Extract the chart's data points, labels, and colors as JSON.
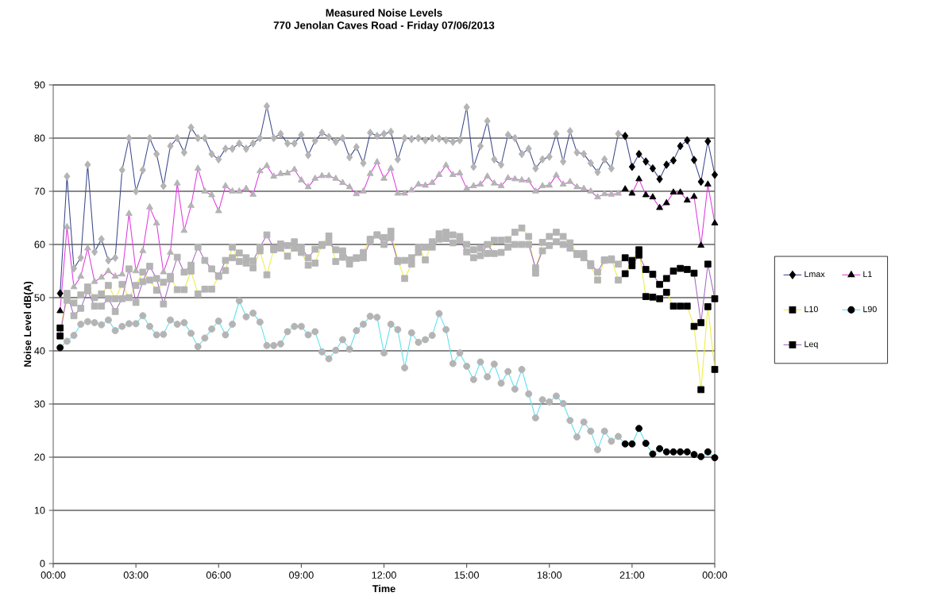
{
  "chart_data": {
    "type": "line",
    "title": "Measured Noise Levels",
    "subtitle": "770 Jenolan Caves Road - Friday 07/06/2013",
    "xlabel": "Time",
    "ylabel": "Noise Level dB(A)",
    "x": [
      0.25,
      0.5,
      0.75,
      1,
      1.25,
      1.5,
      1.75,
      2,
      2.25,
      2.5,
      2.75,
      3,
      3.25,
      3.5,
      3.75,
      4,
      4.25,
      4.5,
      4.75,
      5,
      5.25,
      5.5,
      5.75,
      6,
      6.25,
      6.5,
      6.75,
      7,
      7.25,
      7.5,
      7.75,
      8,
      8.25,
      8.5,
      8.75,
      9,
      9.25,
      9.5,
      9.75,
      10,
      10.25,
      10.5,
      10.75,
      11,
      11.25,
      11.5,
      11.75,
      12,
      12.25,
      12.5,
      12.75,
      13,
      13.25,
      13.5,
      13.75,
      14,
      14.25,
      14.5,
      14.75,
      15,
      15.25,
      15.5,
      15.75,
      16,
      16.25,
      16.5,
      16.75,
      17,
      17.25,
      17.5,
      17.75,
      18,
      18.25,
      18.5,
      18.75,
      19,
      19.25,
      19.5,
      19.75,
      20,
      20.25,
      20.5,
      20.75,
      21,
      21.25,
      21.5,
      21.75,
      22,
      22.25,
      22.5,
      22.75,
      23,
      23.25,
      23.5,
      23.75,
      24
    ],
    "xlim": [
      0,
      24
    ],
    "ylim": [
      0,
      90
    ],
    "xticks": [
      {
        "value": 0,
        "label": "00:00"
      },
      {
        "value": 3,
        "label": "03:00"
      },
      {
        "value": 6,
        "label": "06:00"
      },
      {
        "value": 9,
        "label": "09:00"
      },
      {
        "value": 12,
        "label": "12:00"
      },
      {
        "value": 15,
        "label": "15:00"
      },
      {
        "value": 18,
        "label": "18:00"
      },
      {
        "value": 21,
        "label": "21:00"
      },
      {
        "value": 24,
        "label": "00:00"
      }
    ],
    "yticks": [
      0,
      10,
      20,
      30,
      40,
      50,
      60,
      70,
      80,
      90
    ],
    "grid": "y",
    "legend": "right",
    "series": [
      {
        "name": "Lmax",
        "color": "#3c4a8c",
        "marker": "diamond",
        "values": [
          50.8,
          72.8,
          55.5,
          57.5,
          75,
          58.6,
          61,
          57,
          57.5,
          74,
          80,
          70,
          74,
          80,
          77,
          71,
          78.5,
          80,
          77.3,
          82,
          80,
          80,
          77,
          76,
          78,
          78,
          79,
          78,
          79,
          80,
          86,
          80,
          80.8,
          79,
          79,
          80.6,
          76.8,
          79.5,
          81,
          80.2,
          79.3,
          80,
          76.4,
          78.3,
          75.3,
          81,
          80.4,
          80.8,
          81.2,
          76,
          80,
          79.8,
          80,
          79.6,
          80,
          79.9,
          79.6,
          79.3,
          79.6,
          85.8,
          74.6,
          78.5,
          83.2,
          76,
          75,
          80.6,
          80,
          77,
          78,
          74.3,
          76,
          76.5,
          80.8,
          75.6,
          81.3,
          77.3,
          77,
          75.3,
          73.6,
          76,
          74.3,
          80.8,
          80.4,
          74.6,
          77,
          75.6,
          74.3,
          72.3,
          75,
          75.8,
          78.5,
          79.6,
          75.9,
          71.8,
          79.4,
          73.1
        ],
        "colors": [
          "#000000",
          "#b4b4b4",
          "#b4b4b4",
          "#b4b4b4",
          "#b4b4b4",
          "#b4b4b4",
          "#b4b4b4",
          "#b4b4b4",
          "#b4b4b4",
          "#b4b4b4",
          "#b4b4b4",
          "#b4b4b4",
          "#b4b4b4",
          "#b4b4b4",
          "#b4b4b4",
          "#b4b4b4",
          "#b4b4b4",
          "#b4b4b4",
          "#b4b4b4",
          "#b4b4b4",
          "#b4b4b4",
          "#b4b4b4",
          "#b4b4b4",
          "#b4b4b4",
          "#b4b4b4",
          "#b4b4b4",
          "#b4b4b4",
          "#b4b4b4",
          "#b4b4b4",
          "#b4b4b4",
          "#b4b4b4",
          "#b4b4b4",
          "#b4b4b4",
          "#b4b4b4",
          "#b4b4b4",
          "#b4b4b4",
          "#b4b4b4",
          "#b4b4b4",
          "#b4b4b4",
          "#b4b4b4",
          "#b4b4b4",
          "#b4b4b4",
          "#b4b4b4",
          "#b4b4b4",
          "#b4b4b4",
          "#b4b4b4",
          "#b4b4b4",
          "#b4b4b4",
          "#b4b4b4",
          "#b4b4b4",
          "#b4b4b4",
          "#b4b4b4",
          "#b4b4b4",
          "#b4b4b4",
          "#b4b4b4",
          "#b4b4b4",
          "#b4b4b4",
          "#b4b4b4",
          "#b4b4b4",
          "#b4b4b4",
          "#b4b4b4",
          "#b4b4b4",
          "#b4b4b4",
          "#b4b4b4",
          "#b4b4b4",
          "#b4b4b4",
          "#b4b4b4",
          "#b4b4b4",
          "#b4b4b4",
          "#b4b4b4",
          "#b4b4b4",
          "#b4b4b4",
          "#b4b4b4",
          "#b4b4b4",
          "#b4b4b4",
          "#b4b4b4",
          "#b4b4b4",
          "#b4b4b4",
          "#b4b4b4",
          "#b4b4b4",
          "#b4b4b4",
          "#b4b4b4",
          "#000000",
          "#000000",
          "#000000",
          "#000000",
          "#000000",
          "#000000",
          "#000000",
          "#000000",
          "#000000",
          "#000000",
          "#000000",
          "#000000",
          "#000000",
          "#000000"
        ]
      },
      {
        "name": "L1",
        "color": "#e03ce0",
        "marker": "triangle",
        "values": [
          47.5,
          63.3,
          52,
          54,
          59.3,
          53,
          53.8,
          55,
          54,
          54.4,
          65.8,
          55,
          58.8,
          67,
          64,
          54.8,
          58.5,
          71.5,
          62.6,
          67.3,
          74.3,
          70,
          69.3,
          66.3,
          71,
          70,
          70,
          70.5,
          69.4,
          73.8,
          74.8,
          72.8,
          73.3,
          73.4,
          74.1,
          72.1,
          70.8,
          72.4,
          72.9,
          72.9,
          72.4,
          71.6,
          70.8,
          69.5,
          70,
          73.3,
          75.5,
          72.4,
          74.3,
          69.6,
          69.6,
          70.2,
          71.3,
          71.1,
          71.6,
          73.1,
          74.9,
          73.1,
          73.4,
          70.5,
          71,
          71.3,
          72.8,
          71.5,
          71,
          72.5,
          72.3,
          72.1,
          72,
          70,
          71,
          71.1,
          73,
          71.3,
          71.8,
          70.8,
          70.5,
          70,
          68.9,
          69.5,
          69.4,
          69.6,
          70.4,
          69.6,
          72.3,
          69.3,
          68.9,
          66.9,
          67.8,
          69.8,
          69.8,
          68.3,
          69,
          59.8,
          71.3,
          64
        ],
        "colors": [
          "#000000",
          "#b4b4b4",
          "#b4b4b4",
          "#b4b4b4",
          "#b4b4b4",
          "#b4b4b4",
          "#b4b4b4",
          "#b4b4b4",
          "#b4b4b4",
          "#b4b4b4",
          "#b4b4b4",
          "#b4b4b4",
          "#b4b4b4",
          "#b4b4b4",
          "#b4b4b4",
          "#b4b4b4",
          "#b4b4b4",
          "#b4b4b4",
          "#b4b4b4",
          "#b4b4b4",
          "#b4b4b4",
          "#b4b4b4",
          "#b4b4b4",
          "#b4b4b4",
          "#b4b4b4",
          "#b4b4b4",
          "#b4b4b4",
          "#b4b4b4",
          "#b4b4b4",
          "#b4b4b4",
          "#b4b4b4",
          "#b4b4b4",
          "#b4b4b4",
          "#b4b4b4",
          "#b4b4b4",
          "#b4b4b4",
          "#b4b4b4",
          "#b4b4b4",
          "#b4b4b4",
          "#b4b4b4",
          "#b4b4b4",
          "#b4b4b4",
          "#b4b4b4",
          "#b4b4b4",
          "#b4b4b4",
          "#b4b4b4",
          "#b4b4b4",
          "#b4b4b4",
          "#b4b4b4",
          "#b4b4b4",
          "#b4b4b4",
          "#b4b4b4",
          "#b4b4b4",
          "#b4b4b4",
          "#b4b4b4",
          "#b4b4b4",
          "#b4b4b4",
          "#b4b4b4",
          "#b4b4b4",
          "#b4b4b4",
          "#b4b4b4",
          "#b4b4b4",
          "#b4b4b4",
          "#b4b4b4",
          "#b4b4b4",
          "#b4b4b4",
          "#b4b4b4",
          "#b4b4b4",
          "#b4b4b4",
          "#b4b4b4",
          "#b4b4b4",
          "#b4b4b4",
          "#b4b4b4",
          "#b4b4b4",
          "#b4b4b4",
          "#b4b4b4",
          "#b4b4b4",
          "#b4b4b4",
          "#b4b4b4",
          "#b4b4b4",
          "#b4b4b4",
          "#b4b4b4",
          "#000000",
          "#000000",
          "#000000",
          "#000000",
          "#000000",
          "#000000",
          "#000000",
          "#000000",
          "#000000",
          "#000000",
          "#000000",
          "#000000",
          "#000000",
          "#000000"
        ]
      },
      {
        "name": "L10",
        "color": "#eeee44",
        "marker": "square",
        "values": [
          44.3,
          49.5,
          49,
          50.5,
          52,
          50,
          50.7,
          52.3,
          49.8,
          52.5,
          50,
          52.3,
          54.8,
          53.3,
          51.4,
          52.9,
          54,
          51.5,
          51.5,
          55,
          50.7,
          51.6,
          51.6,
          54,
          55.1,
          59.5,
          56.8,
          56.5,
          55.6,
          58.8,
          54.3,
          59,
          59.3,
          57.8,
          59.3,
          58.5,
          56.1,
          56.5,
          60,
          61.6,
          56.8,
          57.6,
          56.3,
          57.5,
          58.5,
          61,
          61.8,
          61.3,
          62.5,
          57,
          53.6,
          56.3,
          59.5,
          57.1,
          60.5,
          62,
          62.3,
          61.8,
          61.5,
          60,
          59,
          59.3,
          58.3,
          60.8,
          60.8,
          60.9,
          62.3,
          63.1,
          61.5,
          54.6,
          60.4,
          61.5,
          62.3,
          61.5,
          60.3,
          58.3,
          58.3,
          56,
          53.3,
          57,
          57.3,
          53.3,
          54.5,
          57,
          59,
          50.2,
          50.1,
          49.8,
          51,
          48.4,
          48.4,
          48.4,
          44.6,
          32.7,
          48.3,
          36.5
        ],
        "colors": [
          "#000000",
          "#b4b4b4",
          "#b4b4b4",
          "#b4b4b4",
          "#b4b4b4",
          "#b4b4b4",
          "#b4b4b4",
          "#b4b4b4",
          "#b4b4b4",
          "#b4b4b4",
          "#b4b4b4",
          "#b4b4b4",
          "#b4b4b4",
          "#b4b4b4",
          "#b4b4b4",
          "#b4b4b4",
          "#b4b4b4",
          "#b4b4b4",
          "#b4b4b4",
          "#b4b4b4",
          "#b4b4b4",
          "#b4b4b4",
          "#b4b4b4",
          "#b4b4b4",
          "#b4b4b4",
          "#b4b4b4",
          "#b4b4b4",
          "#b4b4b4",
          "#b4b4b4",
          "#b4b4b4",
          "#b4b4b4",
          "#b4b4b4",
          "#b4b4b4",
          "#b4b4b4",
          "#b4b4b4",
          "#b4b4b4",
          "#b4b4b4",
          "#b4b4b4",
          "#b4b4b4",
          "#b4b4b4",
          "#b4b4b4",
          "#b4b4b4",
          "#b4b4b4",
          "#b4b4b4",
          "#b4b4b4",
          "#b4b4b4",
          "#b4b4b4",
          "#b4b4b4",
          "#b4b4b4",
          "#b4b4b4",
          "#b4b4b4",
          "#b4b4b4",
          "#b4b4b4",
          "#b4b4b4",
          "#b4b4b4",
          "#b4b4b4",
          "#b4b4b4",
          "#b4b4b4",
          "#b4b4b4",
          "#b4b4b4",
          "#b4b4b4",
          "#b4b4b4",
          "#b4b4b4",
          "#b4b4b4",
          "#b4b4b4",
          "#b4b4b4",
          "#b4b4b4",
          "#b4b4b4",
          "#b4b4b4",
          "#b4b4b4",
          "#b4b4b4",
          "#b4b4b4",
          "#b4b4b4",
          "#b4b4b4",
          "#b4b4b4",
          "#b4b4b4",
          "#b4b4b4",
          "#b4b4b4",
          "#b4b4b4",
          "#b4b4b4",
          "#b4b4b4",
          "#b4b4b4",
          "#000000",
          "#000000",
          "#000000",
          "#000000",
          "#000000",
          "#000000",
          "#000000",
          "#000000",
          "#000000",
          "#000000",
          "#000000",
          "#000000",
          "#000000",
          "#000000"
        ]
      },
      {
        "name": "L90",
        "color": "#5ae0f0",
        "marker": "circle",
        "values": [
          40.6,
          41.8,
          42.9,
          45,
          45.5,
          45.3,
          44.9,
          45.8,
          43.8,
          44.6,
          45.1,
          45.1,
          46.6,
          44.6,
          43,
          43.1,
          45.8,
          45,
          45.3,
          43.3,
          40.8,
          42.4,
          44.1,
          45.6,
          43,
          45,
          49.4,
          46.4,
          47.1,
          45.4,
          41,
          41,
          41.3,
          43.6,
          44.6,
          44.6,
          43,
          43.6,
          39.8,
          38.5,
          40.1,
          42.1,
          40.3,
          43.8,
          45,
          46.5,
          46.3,
          39.6,
          45,
          44,
          36.8,
          43.4,
          41.6,
          42.1,
          42.9,
          47,
          44,
          37.6,
          39.6,
          37.1,
          34.6,
          37.9,
          35.1,
          37.5,
          33.9,
          36.1,
          32.8,
          36.5,
          31.9,
          27.4,
          30.8,
          30.4,
          31.5,
          30.1,
          26.9,
          23.8,
          26.6,
          24.9,
          21.4,
          24.9,
          23,
          23.9,
          22.5,
          22.5,
          25.4,
          22.6,
          20.6,
          21.6,
          21,
          21,
          21,
          21,
          20.5,
          20.1,
          21,
          19.9
        ],
        "colors": [
          "#000000",
          "#b4b4b4",
          "#b4b4b4",
          "#b4b4b4",
          "#b4b4b4",
          "#b4b4b4",
          "#b4b4b4",
          "#b4b4b4",
          "#b4b4b4",
          "#b4b4b4",
          "#b4b4b4",
          "#b4b4b4",
          "#b4b4b4",
          "#b4b4b4",
          "#b4b4b4",
          "#b4b4b4",
          "#b4b4b4",
          "#b4b4b4",
          "#b4b4b4",
          "#b4b4b4",
          "#b4b4b4",
          "#b4b4b4",
          "#b4b4b4",
          "#b4b4b4",
          "#b4b4b4",
          "#b4b4b4",
          "#b4b4b4",
          "#b4b4b4",
          "#b4b4b4",
          "#b4b4b4",
          "#b4b4b4",
          "#b4b4b4",
          "#b4b4b4",
          "#b4b4b4",
          "#b4b4b4",
          "#b4b4b4",
          "#b4b4b4",
          "#b4b4b4",
          "#b4b4b4",
          "#b4b4b4",
          "#b4b4b4",
          "#b4b4b4",
          "#b4b4b4",
          "#b4b4b4",
          "#b4b4b4",
          "#b4b4b4",
          "#b4b4b4",
          "#b4b4b4",
          "#b4b4b4",
          "#b4b4b4",
          "#b4b4b4",
          "#b4b4b4",
          "#b4b4b4",
          "#b4b4b4",
          "#b4b4b4",
          "#b4b4b4",
          "#b4b4b4",
          "#b4b4b4",
          "#b4b4b4",
          "#b4b4b4",
          "#b4b4b4",
          "#b4b4b4",
          "#b4b4b4",
          "#b4b4b4",
          "#b4b4b4",
          "#b4b4b4",
          "#b4b4b4",
          "#b4b4b4",
          "#b4b4b4",
          "#b4b4b4",
          "#b4b4b4",
          "#b4b4b4",
          "#b4b4b4",
          "#b4b4b4",
          "#b4b4b4",
          "#b4b4b4",
          "#b4b4b4",
          "#b4b4b4",
          "#b4b4b4",
          "#b4b4b4",
          "#b4b4b4",
          "#b4b4b4",
          "#000000",
          "#000000",
          "#000000",
          "#000000",
          "#000000",
          "#000000",
          "#000000",
          "#000000",
          "#000000",
          "#000000",
          "#000000",
          "#000000",
          "#000000",
          "#000000"
        ]
      },
      {
        "name": "Leq",
        "color": "#a868c0",
        "marker": "square",
        "values": [
          42.8,
          50.8,
          46.6,
          48,
          51.3,
          48.4,
          48.4,
          49.8,
          47.4,
          49.8,
          55.4,
          49.1,
          53,
          55.9,
          53.6,
          48.8,
          53.5,
          57.6,
          54.8,
          56.1,
          59.5,
          57,
          55.4,
          54.1,
          57,
          57.5,
          58.4,
          57.5,
          56.9,
          59.5,
          61.8,
          59.3,
          60.1,
          59.8,
          60.5,
          59.5,
          57.5,
          59.1,
          59.8,
          60.4,
          59,
          58.8,
          57.1,
          57.4,
          57.5,
          60.6,
          61.8,
          60,
          61.3,
          56.8,
          57,
          57.5,
          58.5,
          59.5,
          59.5,
          61,
          61.1,
          60.3,
          60.8,
          58.6,
          57.5,
          57.9,
          60,
          58.3,
          58.5,
          59.5,
          60,
          60,
          60,
          55.6,
          58.8,
          59.8,
          60.5,
          60,
          59.3,
          58.1,
          57.5,
          56.4,
          54.8,
          57.1,
          57.1,
          56.3,
          57.5,
          56,
          58,
          55.3,
          54.4,
          52.5,
          53.6,
          55,
          55.5,
          55.3,
          54.6,
          45.3,
          56.3,
          49.8
        ],
        "colors": [
          "#000000",
          "#b4b4b4",
          "#b4b4b4",
          "#b4b4b4",
          "#b4b4b4",
          "#b4b4b4",
          "#b4b4b4",
          "#b4b4b4",
          "#b4b4b4",
          "#b4b4b4",
          "#b4b4b4",
          "#b4b4b4",
          "#b4b4b4",
          "#b4b4b4",
          "#b4b4b4",
          "#b4b4b4",
          "#b4b4b4",
          "#b4b4b4",
          "#b4b4b4",
          "#b4b4b4",
          "#b4b4b4",
          "#b4b4b4",
          "#b4b4b4",
          "#b4b4b4",
          "#b4b4b4",
          "#b4b4b4",
          "#b4b4b4",
          "#b4b4b4",
          "#b4b4b4",
          "#b4b4b4",
          "#b4b4b4",
          "#b4b4b4",
          "#b4b4b4",
          "#b4b4b4",
          "#b4b4b4",
          "#b4b4b4",
          "#b4b4b4",
          "#b4b4b4",
          "#b4b4b4",
          "#b4b4b4",
          "#b4b4b4",
          "#b4b4b4",
          "#b4b4b4",
          "#b4b4b4",
          "#b4b4b4",
          "#b4b4b4",
          "#b4b4b4",
          "#b4b4b4",
          "#b4b4b4",
          "#b4b4b4",
          "#b4b4b4",
          "#b4b4b4",
          "#b4b4b4",
          "#b4b4b4",
          "#b4b4b4",
          "#b4b4b4",
          "#b4b4b4",
          "#b4b4b4",
          "#b4b4b4",
          "#b4b4b4",
          "#b4b4b4",
          "#b4b4b4",
          "#b4b4b4",
          "#b4b4b4",
          "#b4b4b4",
          "#b4b4b4",
          "#b4b4b4",
          "#b4b4b4",
          "#b4b4b4",
          "#b4b4b4",
          "#b4b4b4",
          "#b4b4b4",
          "#b4b4b4",
          "#b4b4b4",
          "#b4b4b4",
          "#b4b4b4",
          "#b4b4b4",
          "#b4b4b4",
          "#b4b4b4",
          "#b4b4b4",
          "#b4b4b4",
          "#b4b4b4",
          "#000000",
          "#000000",
          "#000000",
          "#000000",
          "#000000",
          "#000000",
          "#000000",
          "#000000",
          "#000000",
          "#000000",
          "#000000",
          "#000000",
          "#000000",
          "#000000"
        ]
      }
    ]
  }
}
